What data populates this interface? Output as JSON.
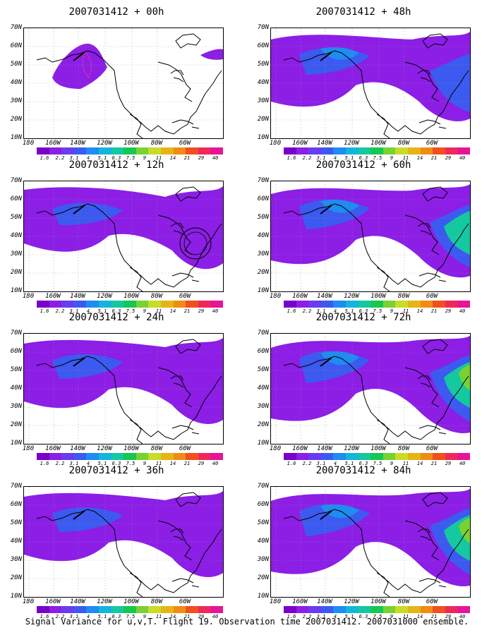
{
  "panels": [
    {
      "title": "2007031412 + 00h",
      "level": 0
    },
    {
      "title": "2007031412 + 48h",
      "level": 3
    },
    {
      "title": "2007031412 + 12h",
      "level": 1
    },
    {
      "title": "2007031412 + 60h",
      "level": 4
    },
    {
      "title": "2007031412 + 24h",
      "level": 2
    },
    {
      "title": "2007031412 + 72h",
      "level": 5
    },
    {
      "title": "2007031412 + 36h",
      "level": 2
    },
    {
      "title": "2007031412 + 84h",
      "level": 5
    }
  ],
  "axes": {
    "lat_ticks": [
      "70N",
      "60N",
      "50N",
      "40N",
      "30N",
      "20N",
      "10N"
    ],
    "lon_ticks": [
      "180",
      "160W",
      "140W",
      "120W",
      "100W",
      "80W",
      "60W"
    ]
  },
  "colorbar": {
    "colors": [
      "#7a00c8",
      "#8c1ee6",
      "#6a3cf0",
      "#3c5af0",
      "#1e8cf0",
      "#14b4dc",
      "#14c8a0",
      "#14c850",
      "#78d232",
      "#c8dc28",
      "#e6b414",
      "#f08c14",
      "#f0501e",
      "#f0285a",
      "#e61496"
    ],
    "labels": [
      "1.6",
      "2.2",
      "3.1",
      "4",
      "5.1",
      "6.3",
      "7.5",
      "9",
      "11",
      "14",
      "21",
      "29",
      "40"
    ]
  },
  "footer": "Signal Variance for u,v,T. Flight 19. Observation time 2007031412. 2007031000 ensemble."
}
